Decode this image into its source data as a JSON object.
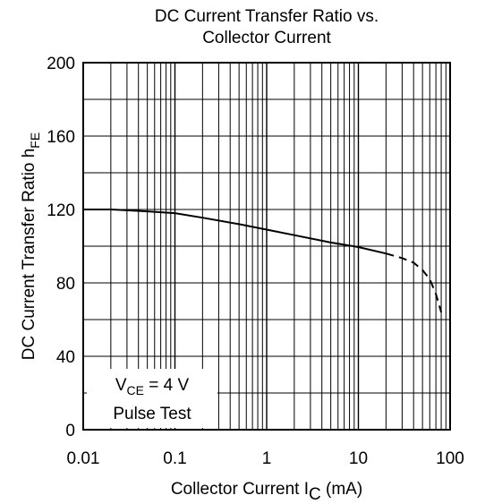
{
  "chart_data": {
    "type": "line",
    "title_line1": "DC Current Transfer Ratio vs.",
    "title_line2": "Collector Current",
    "xlabel": {
      "main": "Collector Current  I",
      "sub": "C",
      "unit": " (mA)"
    },
    "ylabel": {
      "main": "DC Current Transfer Ratio  h",
      "sub": "FE"
    },
    "x_scale": "log",
    "xlim": [
      0.01,
      100
    ],
    "ylim": [
      0,
      200
    ],
    "x_ticks": [
      {
        "value": 0.01,
        "label": "0.01"
      },
      {
        "value": 0.1,
        "label": "0.1"
      },
      {
        "value": 1,
        "label": "1"
      },
      {
        "value": 10,
        "label": "10"
      },
      {
        "value": 100,
        "label": "100"
      }
    ],
    "y_ticks": [
      {
        "value": 0,
        "label": "0"
      },
      {
        "value": 40,
        "label": "40"
      },
      {
        "value": 80,
        "label": "80"
      },
      {
        "value": 120,
        "label": "120"
      },
      {
        "value": 160,
        "label": "160"
      },
      {
        "value": 200,
        "label": "200"
      }
    ],
    "grid": true,
    "annotation": {
      "v_main": "V",
      "v_sub": "CE",
      "v_rest": " = 4 V",
      "line2": "Pulse Test"
    },
    "series": [
      {
        "style": "solid",
        "x": [
          0.01,
          0.02,
          0.05,
          0.1,
          0.2,
          0.5,
          1,
          2,
          5,
          10,
          20
        ],
        "y": [
          120,
          120,
          119,
          118,
          115.5,
          112,
          109,
          106,
          102,
          99.5,
          96
        ]
      },
      {
        "style": "dashed",
        "x": [
          20,
          30,
          40,
          50,
          60,
          70,
          80
        ],
        "y": [
          96,
          93.5,
          91,
          87,
          82,
          74,
          64
        ]
      }
    ]
  }
}
